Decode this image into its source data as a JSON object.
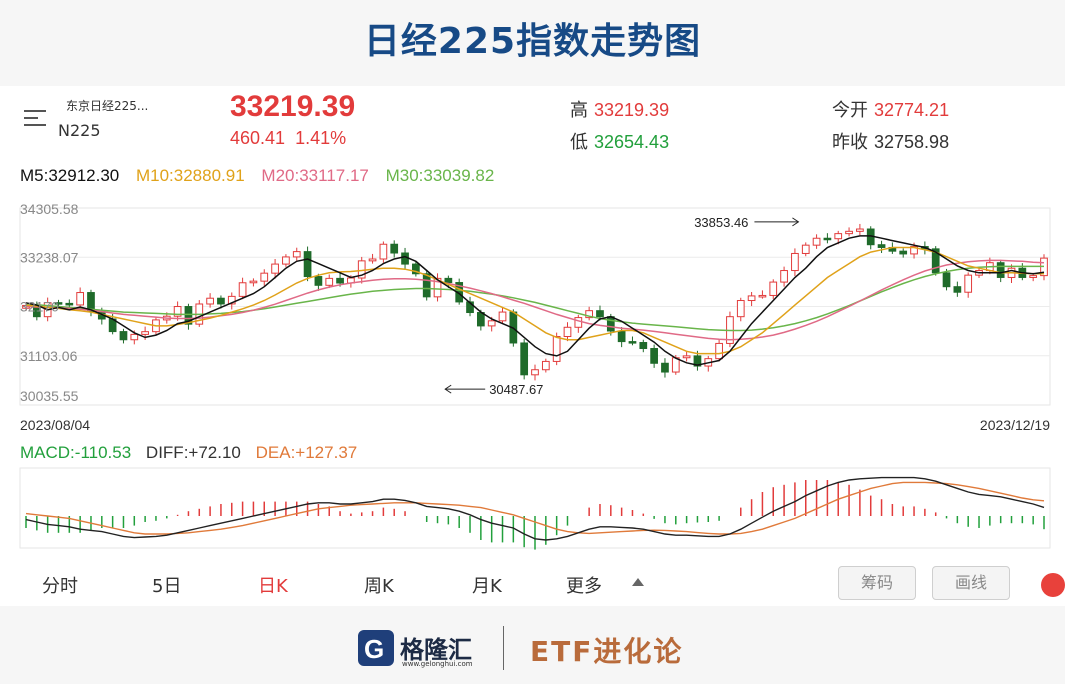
{
  "title": "日经225指数走势图",
  "header": {
    "name": "东京日经225...",
    "code": "N225",
    "price": "33219.39",
    "change": "460.41",
    "change_pct": "1.41%",
    "high_label": "高",
    "high": "33219.39",
    "low_label": "低",
    "low": "32654.43",
    "open_label": "今开",
    "open": "32774.21",
    "prev_label": "昨收",
    "prev": "32758.98"
  },
  "ma": {
    "m5": "M5:32912.30",
    "m10": "M10:32880.91",
    "m20": "M20:33117.17",
    "m30": "M30:33039.82"
  },
  "macd": {
    "macd": "MACD:-110.53",
    "diff": "DIFF:+72.10",
    "dea": "DEA:+127.37"
  },
  "tabs": [
    "分时",
    "5日",
    "日K",
    "周K",
    "月K",
    "更多"
  ],
  "buttons": {
    "chip": "筹码",
    "draw": "画线"
  },
  "footer": {
    "brand": "格隆汇",
    "url": "www.gelonghui.com",
    "etf": "ETF进化论"
  },
  "colors": {
    "up": "#e23b3b",
    "down": "#1f6b2a",
    "ma5": "#111111",
    "ma10": "#e0a21a",
    "ma20": "#e06a86",
    "ma30": "#69b54a",
    "title": "#174a86"
  },
  "chart_data": {
    "type": "candlestick",
    "y_ticks": [
      "34305.58",
      "33238.07",
      "32170",
      "31103.06",
      "30035.55"
    ],
    "ylim": [
      30035.55,
      34305.58
    ],
    "x_start": "2023/08/04",
    "x_end": "2023/12/19",
    "annotations": [
      {
        "text": "33853.46",
        "value": 33853.46,
        "index": 68
      },
      {
        "text": "30487.67",
        "value": 30487.67,
        "index": 40
      }
    ],
    "close": [
      32193,
      31950,
      32254,
      32238,
      32204,
      32473,
      32060,
      31900,
      31627,
      31450,
      31566,
      31625,
      31880,
      31960,
      32170,
      31788,
      32225,
      32350,
      32226,
      32390,
      32685,
      32720,
      32893,
      33090,
      33245,
      33360,
      32820,
      32630,
      32780,
      32680,
      32788,
      33160,
      33200,
      33520,
      33330,
      33090,
      32880,
      32380,
      32780,
      32690,
      32270,
      32040,
      31750,
      31860,
      32050,
      31380,
      30690,
      30800,
      30980,
      31520,
      31720,
      31930,
      32080,
      31950,
      31640,
      31410,
      31390,
      31260,
      30940,
      30750,
      31060,
      31100,
      30880,
      31040,
      31370,
      31950,
      32300,
      32400,
      32410,
      32700,
      32950,
      33320,
      33500,
      33650,
      33640,
      33750,
      33800,
      33850,
      33510,
      33450,
      33370,
      33310,
      33470,
      33420,
      32900,
      32600,
      32480,
      32850,
      32950,
      33120,
      32800,
      33000,
      32800,
      32840,
      33219
    ],
    "ma5": [
      32250,
      32200,
      32100,
      32150,
      32100,
      32160,
      32100,
      32000,
      31900,
      31750,
      31600,
      31500,
      31550,
      31650,
      31800,
      31850,
      31950,
      32050,
      32150,
      32250,
      32350,
      32450,
      32600,
      32800,
      33000,
      33150,
      33200,
      33100,
      33000,
      32900,
      32800,
      32850,
      32950,
      33100,
      33200,
      33250,
      33150,
      32950,
      32750,
      32600,
      32450,
      32250,
      32050,
      31900,
      31800,
      31700,
      31500,
      31300,
      31150,
      31100,
      31200,
      31450,
      31700,
      31900,
      31950,
      31850,
      31700,
      31550,
      31400,
      31200,
      31050,
      30950,
      30900,
      30950,
      31000,
      31200,
      31500,
      31800,
      32050,
      32300,
      32550,
      32800,
      33000,
      33250,
      33450,
      33550,
      33650,
      33700,
      33700,
      33650,
      33600,
      33550,
      33500,
      33450,
      33350,
      33200,
      33050,
      32950,
      32900,
      32900,
      32900,
      32950,
      32900,
      32880,
      32912
    ],
    "ma10": [
      32200,
      32180,
      32150,
      32130,
      32100,
      32080,
      32050,
      32000,
      31950,
      31900,
      31850,
      31800,
      31750,
      31750,
      31780,
      31820,
      31870,
      31920,
      31980,
      32050,
      32120,
      32200,
      32300,
      32420,
      32550,
      32680,
      32780,
      32850,
      32900,
      32920,
      32930,
      32950,
      32980,
      33000,
      33000,
      32980,
      32930,
      32850,
      32750,
      32650,
      32550,
      32450,
      32350,
      32250,
      32150,
      32050,
      31900,
      31750,
      31600,
      31500,
      31450,
      31450,
      31500,
      31550,
      31600,
      31650,
      31650,
      31600,
      31500,
      31400,
      31300,
      31200,
      31150,
      31150,
      31150,
      31200,
      31300,
      31450,
      31600,
      31800,
      32000,
      32200,
      32400,
      32600,
      32800,
      32950,
      33100,
      33250,
      33350,
      33400,
      33450,
      33450,
      33450,
      33400,
      33350,
      33250,
      33150,
      33050,
      33000,
      32950,
      32900,
      32900,
      32890,
      32880,
      32881
    ],
    "ma20": [
      32170,
      32160,
      32150,
      32140,
      32130,
      32110,
      32090,
      32060,
      32030,
      32000,
      31980,
      31960,
      31940,
      31920,
      31910,
      31910,
      31920,
      31940,
      31970,
      32000,
      32040,
      32090,
      32150,
      32220,
      32300,
      32380,
      32460,
      32530,
      32590,
      32640,
      32680,
      32710,
      32740,
      32760,
      32770,
      32770,
      32760,
      32740,
      32710,
      32670,
      32620,
      32570,
      32510,
      32450,
      32380,
      32310,
      32240,
      32160,
      32080,
      32000,
      31930,
      31860,
      31800,
      31760,
      31730,
      31700,
      31680,
      31660,
      31630,
      31600,
      31570,
      31540,
      31510,
      31480,
      31460,
      31450,
      31460,
      31480,
      31510,
      31550,
      31610,
      31680,
      31760,
      31850,
      31950,
      32060,
      32170,
      32290,
      32410,
      32530,
      32640,
      32750,
      32850,
      32940,
      33010,
      33070,
      33110,
      33140,
      33160,
      33170,
      33170,
      33160,
      33150,
      33130,
      33117
    ],
    "ma30": [
      32230,
      32210,
      32190,
      32170,
      32150,
      32130,
      32110,
      32090,
      32070,
      32050,
      32040,
      32030,
      32020,
      32010,
      32000,
      32000,
      32000,
      32010,
      32020,
      32040,
      32060,
      32090,
      32120,
      32160,
      32200,
      32240,
      32280,
      32320,
      32360,
      32400,
      32440,
      32470,
      32500,
      32520,
      32540,
      32550,
      32560,
      32560,
      32550,
      32540,
      32520,
      32500,
      32470,
      32440,
      32400,
      32360,
      32310,
      32260,
      32200,
      32140,
      32080,
      32020,
      31960,
      31910,
      31870,
      31840,
      31810,
      31790,
      31770,
      31750,
      31730,
      31710,
      31690,
      31670,
      31660,
      31650,
      31650,
      31660,
      31680,
      31710,
      31750,
      31800,
      31860,
      31930,
      32010,
      32100,
      32190,
      32290,
      32390,
      32490,
      32580,
      32670,
      32750,
      32820,
      32880,
      32930,
      32970,
      33000,
      33020,
      33030,
      33040,
      33040,
      33040,
      33040,
      33040
    ],
    "diff": [
      -30,
      -50,
      -70,
      -80,
      -90,
      -110,
      -120,
      -130,
      -150,
      -170,
      -180,
      -175,
      -170,
      -160,
      -140,
      -120,
      -100,
      -80,
      -60,
      -40,
      -20,
      0,
      20,
      40,
      60,
      80,
      100,
      110,
      110,
      100,
      100,
      110,
      120,
      140,
      140,
      130,
      110,
      80,
      70,
      60,
      40,
      10,
      -30,
      -60,
      -80,
      -100,
      -150,
      -190,
      -200,
      -190,
      -170,
      -140,
      -110,
      -90,
      -90,
      -95,
      -100,
      -110,
      -130,
      -150,
      -160,
      -160,
      -165,
      -170,
      -170,
      -150,
      -110,
      -60,
      -10,
      40,
      80,
      120,
      170,
      210,
      250,
      280,
      300,
      310,
      315,
      320,
      320,
      320,
      320,
      310,
      290,
      260,
      230,
      200,
      180,
      170,
      160,
      140,
      120,
      100,
      72
    ],
    "dea": [
      20,
      10,
      0,
      -10,
      -20,
      -40,
      -60,
      -80,
      -100,
      -120,
      -140,
      -150,
      -150,
      -150,
      -145,
      -140,
      -130,
      -120,
      -110,
      -95,
      -80,
      -60,
      -40,
      -20,
      0,
      20,
      40,
      60,
      70,
      80,
      90,
      95,
      100,
      105,
      110,
      110,
      110,
      105,
      100,
      95,
      90,
      80,
      70,
      50,
      30,
      10,
      -20,
      -50,
      -80,
      -110,
      -130,
      -140,
      -145,
      -140,
      -135,
      -130,
      -125,
      -120,
      -118,
      -120,
      -125,
      -130,
      -138,
      -145,
      -150,
      -150,
      -145,
      -130,
      -110,
      -80,
      -50,
      -20,
      20,
      60,
      100,
      140,
      170,
      200,
      230,
      250,
      270,
      280,
      280,
      280,
      275,
      270,
      260,
      245,
      230,
      210,
      190,
      170,
      150,
      135,
      127
    ]
  }
}
